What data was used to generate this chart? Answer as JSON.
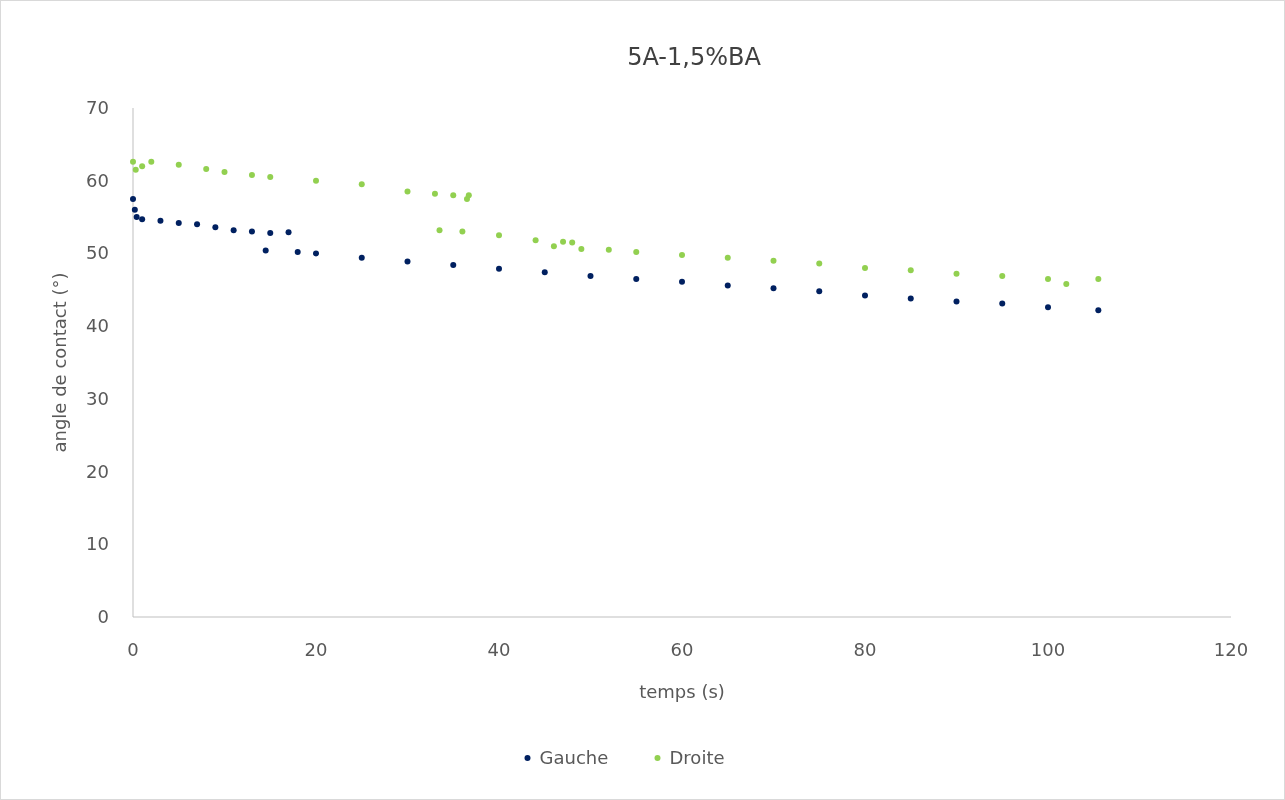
{
  "chart_data": {
    "type": "scatter",
    "title": "5A-1,5%BA",
    "xlabel": "temps (s)",
    "ylabel": "angle de contact (°)",
    "xlim": [
      0,
      120
    ],
    "xticks": [
      0,
      20,
      40,
      60,
      80,
      100,
      120
    ],
    "ylim": [
      0,
      70
    ],
    "yticks": [
      0,
      10,
      20,
      30,
      40,
      50,
      60,
      70
    ],
    "grid": false,
    "legend": "bottom",
    "marker": "circle",
    "series": [
      {
        "name": "Gauche",
        "color": "#002060",
        "x": [
          0,
          0.2,
          0.4,
          1,
          3,
          5,
          7,
          9,
          11,
          13,
          15,
          17,
          14.5,
          18,
          20,
          25,
          30,
          35,
          40,
          45,
          50,
          55,
          60,
          65,
          70,
          75,
          80,
          85,
          90,
          95,
          100,
          105.5
        ],
        "values": [
          57.5,
          56,
          55,
          54.7,
          54.5,
          54.2,
          54,
          53.6,
          53.2,
          53,
          52.8,
          52.9,
          50.4,
          50.2,
          50,
          49.4,
          48.9,
          48.4,
          47.9,
          47.4,
          46.9,
          46.5,
          46.1,
          45.6,
          45.2,
          44.8,
          44.2,
          43.8,
          43.4,
          43.1,
          42.6,
          42.2
        ]
      },
      {
        "name": "Droite",
        "color": "#92d050",
        "x": [
          0,
          0.3,
          1,
          2,
          5,
          8,
          10,
          13,
          15,
          20,
          25,
          30,
          33,
          35,
          36.5,
          36.7,
          33.5,
          36,
          40,
          44,
          46,
          47,
          48,
          49,
          52,
          55,
          60,
          65,
          70,
          75,
          80,
          85,
          90,
          95,
          100,
          102,
          105.5
        ],
        "values": [
          62.6,
          61.5,
          62,
          62.6,
          62.2,
          61.6,
          61.2,
          60.8,
          60.5,
          60,
          59.5,
          58.5,
          58.2,
          58,
          57.5,
          58,
          53.2,
          53,
          52.5,
          51.8,
          51,
          51.6,
          51.5,
          50.6,
          50.5,
          50.2,
          49.8,
          49.4,
          49,
          48.6,
          48,
          47.7,
          47.2,
          46.9,
          46.5,
          45.8,
          46.5
        ]
      }
    ]
  }
}
